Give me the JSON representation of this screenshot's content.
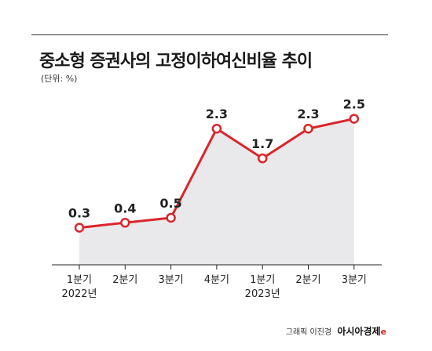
{
  "header": {
    "title": "중소형 증권사의 고정이하여신비율 추이",
    "unit": "(단위: %)"
  },
  "chart_data": {
    "type": "area",
    "categories": [
      "1분기",
      "2분기",
      "3분기",
      "4분기",
      "1분기",
      "2분기",
      "3분기"
    ],
    "year_labels": [
      "2022년",
      "",
      "",
      "",
      "2023년",
      "",
      ""
    ],
    "values": [
      0.3,
      0.4,
      0.5,
      2.3,
      1.7,
      2.3,
      2.5
    ],
    "data_labels": [
      "0.3",
      "0.4",
      "0.5",
      "2.3",
      "1.7",
      "2.3",
      "2.5"
    ],
    "title": "중소형 증권사의 고정이하여신비율 추이",
    "ylim": [
      -0.45,
      3.0
    ],
    "grid": false,
    "line_color": "#d9262b",
    "fill_color": "#e9e9eb"
  },
  "credit": {
    "text": "그래픽 이진경",
    "brand": "아시아경제",
    "brand_mark": "e"
  }
}
